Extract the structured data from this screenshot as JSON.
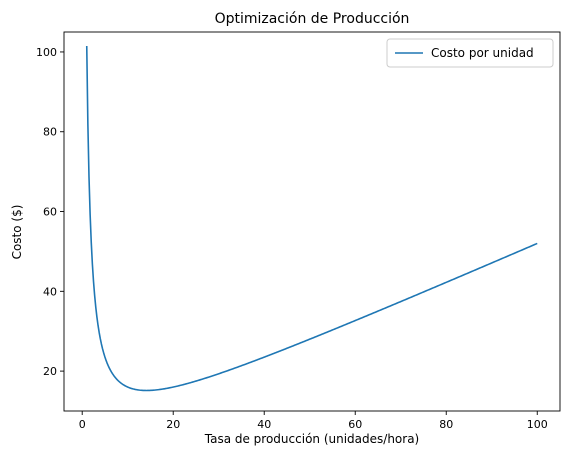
{
  "chart_data": {
    "type": "line",
    "title": "Optimización de Producción",
    "xlabel": "Tasa de producción (unidades/hora)",
    "ylabel": "Costo ($)",
    "xlim": [
      -4,
      105
    ],
    "ylim": [
      10,
      105
    ],
    "xticks": [
      0,
      20,
      40,
      60,
      80,
      100
    ],
    "yticks": [
      20,
      40,
      60,
      80,
      100
    ],
    "grid": false,
    "legend": "top-right",
    "series": [
      {
        "name": "Costo por unidad",
        "color": "#1f77b4",
        "formula": "100/x + 0.5*x + 1",
        "x_range": [
          1,
          100
        ],
        "x": [
          1,
          2,
          3,
          4,
          5,
          6,
          8,
          10,
          12,
          14,
          16,
          20,
          25,
          30,
          40,
          50,
          60,
          70,
          80,
          90,
          100
        ],
        "y": [
          101.5,
          52,
          35.83,
          28,
          23.5,
          20.67,
          18,
          16,
          15.33,
          15.14,
          15.25,
          16,
          17.5,
          19.33,
          23.5,
          28,
          32.67,
          37.43,
          42.25,
          47.11,
          52
        ]
      }
    ]
  }
}
